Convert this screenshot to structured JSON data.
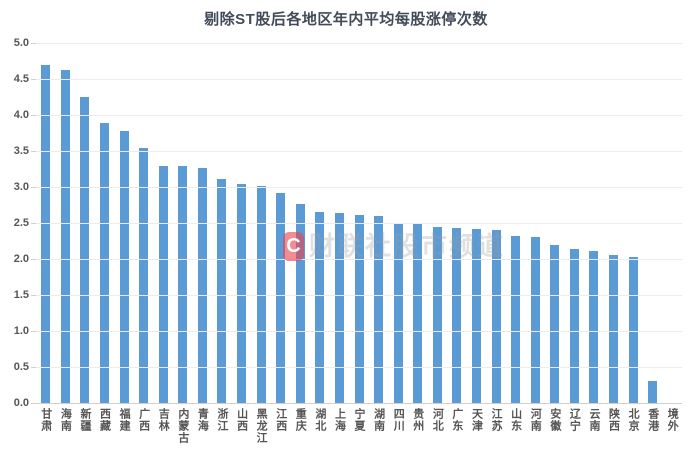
{
  "title": "剔除ST股后各地区年内平均每股涨停次数",
  "watermark": {
    "logo_letter": "C",
    "text": "财联社股市频道"
  },
  "colors": {
    "bar": "#5a9ad5",
    "title_text": "#414b5a",
    "axis_text": "#555555",
    "gridline": "#ececec",
    "axis_line": "#d0d0d0",
    "watermark_badge": "rgba(232,70,80,0.62)",
    "watermark_text": "rgba(158,158,158,0.32)"
  },
  "chart_data": {
    "type": "bar",
    "title": "剔除ST股后各地区年内平均每股涨停次数",
    "categories": [
      "甘肃",
      "海南",
      "新疆",
      "西藏",
      "福建",
      "广西",
      "吉林",
      "内蒙古",
      "青海",
      "浙江",
      "山西",
      "黑龙江",
      "江西",
      "重庆",
      "湖北",
      "上海",
      "宁夏",
      "湖南",
      "四川",
      "贵州",
      "河北",
      "广东",
      "天津",
      "江苏",
      "山东",
      "河南",
      "安徽",
      "辽宁",
      "云南",
      "陕西",
      "北京",
      "香港",
      "境外"
    ],
    "values": [
      4.71,
      4.64,
      4.27,
      3.9,
      3.79,
      3.56,
      3.31,
      3.3,
      3.28,
      3.13,
      3.05,
      3.03,
      2.93,
      2.78,
      2.66,
      2.65,
      2.63,
      2.61,
      2.51,
      2.5,
      2.46,
      2.45,
      2.43,
      2.42,
      2.33,
      2.32,
      2.21,
      2.15,
      2.13,
      2.07,
      2.04,
      0.32,
      0
    ],
    "xlabel": "",
    "ylabel": "",
    "ylim": [
      0,
      5
    ],
    "ytick_step": 0.5,
    "ytick_labels": [
      "0.0",
      "0.5",
      "1.0",
      "1.5",
      "2.0",
      "2.5",
      "3.0",
      "3.5",
      "4.0",
      "4.5",
      "5.0"
    ],
    "grid": "horizontal",
    "legend": "none"
  }
}
